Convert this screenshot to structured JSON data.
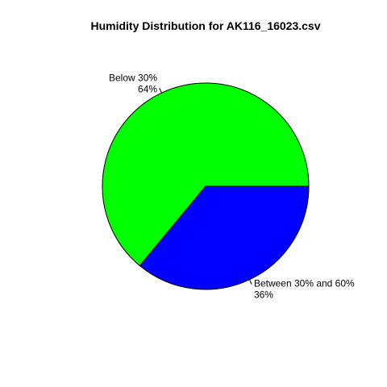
{
  "chart_data": {
    "type": "pie",
    "title": "Humidity Distribution for AK116_16023.csv",
    "slices": [
      {
        "label": "Below 30%",
        "value": 64,
        "percent_label": "64%",
        "color": "#00ff00"
      },
      {
        "label": "Between 30% and 60%",
        "value": 36,
        "percent_label": "36%",
        "color": "#0000ff"
      }
    ],
    "start_angle_deg": 0,
    "direction": "counterclockwise",
    "border_color": "#000000"
  }
}
